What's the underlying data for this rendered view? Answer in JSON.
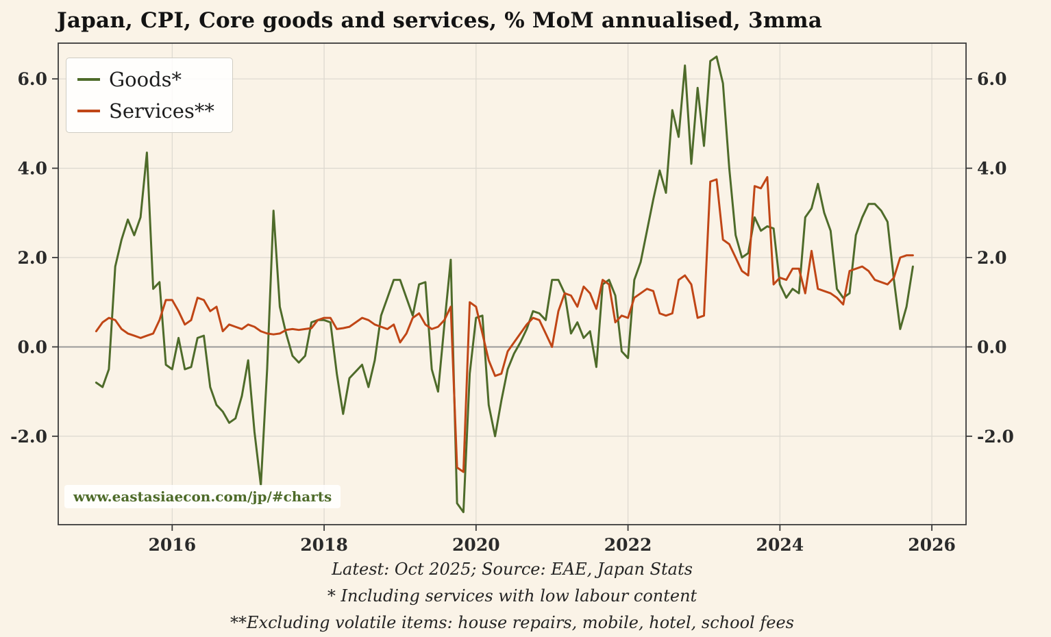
{
  "watermark": "www.eastasiaecon.com/jp/#charts",
  "captions": {
    "latest_source": "Latest: Oct 2025; Source: EAE, Japan Stats",
    "footnote_goods": "* Including services with low labour content",
    "footnote_services": "**Excluding volatile items: house repairs, mobile, hotel, school fees"
  },
  "colors": {
    "background": "#faf3e7",
    "grid": "#dcd8cf",
    "zero_line": "#999999",
    "axis": "#3a3a3a",
    "tick_text": "#2a2a2a",
    "goods": "#4e6b2a",
    "services": "#c04616"
  },
  "chart_data": {
    "type": "line",
    "title": "Japan, CPI, Core goods and services, % MoM annualised, 3mma",
    "x_unit": "decimal_year_monthly",
    "x_start": 2015.0,
    "x_end_label": "Oct 2025",
    "xlim": [
      2014.5,
      2026.45
    ],
    "ylim": [
      -3.98,
      6.8
    ],
    "grid": true,
    "zero_line": true,
    "legend_position": "top-left",
    "x_ticks": [
      2016,
      2018,
      2020,
      2022,
      2024,
      2026
    ],
    "x_tick_labels": [
      "2016",
      "2018",
      "2020",
      "2022",
      "2024",
      "2026"
    ],
    "y_ticks": [
      -2,
      0,
      2,
      4,
      6
    ],
    "y_tick_labels": [
      "-2.0",
      "0.0",
      "2.0",
      "4.0",
      "6.0"
    ],
    "series": [
      {
        "name": "Goods*",
        "color": "#4e6b2a",
        "values": [
          -0.8,
          -0.9,
          -0.5,
          1.8,
          2.4,
          2.85,
          2.5,
          2.9,
          4.35,
          1.3,
          1.45,
          -0.4,
          -0.5,
          0.2,
          -0.5,
          -0.45,
          0.2,
          0.25,
          -0.9,
          -1.3,
          -1.45,
          -1.7,
          -1.6,
          -1.1,
          -0.3,
          -1.9,
          -3.1,
          -0.5,
          3.05,
          0.9,
          0.3,
          -0.2,
          -0.35,
          -0.2,
          0.55,
          0.6,
          0.6,
          0.55,
          -0.6,
          -1.5,
          -0.7,
          -0.55,
          -0.4,
          -0.9,
          -0.3,
          0.7,
          1.1,
          1.5,
          1.5,
          1.1,
          0.7,
          1.4,
          1.45,
          -0.5,
          -1.0,
          0.5,
          1.95,
          -3.5,
          -3.7,
          -0.6,
          0.65,
          0.7,
          -1.3,
          -2.0,
          -1.2,
          -0.5,
          -0.15,
          0.1,
          0.4,
          0.8,
          0.75,
          0.6,
          1.5,
          1.5,
          1.2,
          0.3,
          0.55,
          0.2,
          0.35,
          -0.45,
          1.4,
          1.5,
          1.15,
          -0.1,
          -0.25,
          1.5,
          1.9,
          2.6,
          3.3,
          3.95,
          3.45,
          5.3,
          4.7,
          6.3,
          4.1,
          5.8,
          4.5,
          6.4,
          6.5,
          5.9,
          4.0,
          2.5,
          2.0,
          2.1,
          2.9,
          2.6,
          2.7,
          2.65,
          1.4,
          1.1,
          1.3,
          1.2,
          2.9,
          3.1,
          3.65,
          3.0,
          2.6,
          1.3,
          1.1,
          1.2,
          2.5,
          2.9,
          3.2,
          3.2,
          3.05,
          2.8,
          1.5,
          0.4,
          0.9,
          1.8
        ]
      },
      {
        "name": "Services**",
        "color": "#c04616",
        "values": [
          0.35,
          0.55,
          0.65,
          0.6,
          0.4,
          0.3,
          0.25,
          0.2,
          0.25,
          0.3,
          0.6,
          1.05,
          1.05,
          0.8,
          0.5,
          0.6,
          1.1,
          1.05,
          0.8,
          0.9,
          0.35,
          0.5,
          0.45,
          0.4,
          0.5,
          0.45,
          0.35,
          0.3,
          0.28,
          0.3,
          0.38,
          0.4,
          0.38,
          0.4,
          0.42,
          0.6,
          0.65,
          0.65,
          0.4,
          0.42,
          0.45,
          0.55,
          0.65,
          0.6,
          0.5,
          0.45,
          0.4,
          0.5,
          0.1,
          0.3,
          0.65,
          0.75,
          0.5,
          0.4,
          0.45,
          0.6,
          0.9,
          -2.7,
          -2.8,
          1.0,
          0.9,
          0.3,
          -0.3,
          -0.65,
          -0.6,
          -0.1,
          0.1,
          0.3,
          0.5,
          0.65,
          0.6,
          0.3,
          0.0,
          0.8,
          1.2,
          1.15,
          0.9,
          1.35,
          1.2,
          0.85,
          1.5,
          1.4,
          0.55,
          0.7,
          0.65,
          1.1,
          1.2,
          1.3,
          1.25,
          0.75,
          0.7,
          0.75,
          1.5,
          1.6,
          1.4,
          0.65,
          0.7,
          3.7,
          3.75,
          2.4,
          2.3,
          2.0,
          1.7,
          1.6,
          3.6,
          3.55,
          3.8,
          1.4,
          1.55,
          1.5,
          1.75,
          1.75,
          1.2,
          2.15,
          1.3,
          1.25,
          1.2,
          1.1,
          0.95,
          1.7,
          1.75,
          1.8,
          1.7,
          1.5,
          1.45,
          1.4,
          1.55,
          2.0,
          2.05,
          2.05
        ]
      }
    ]
  }
}
